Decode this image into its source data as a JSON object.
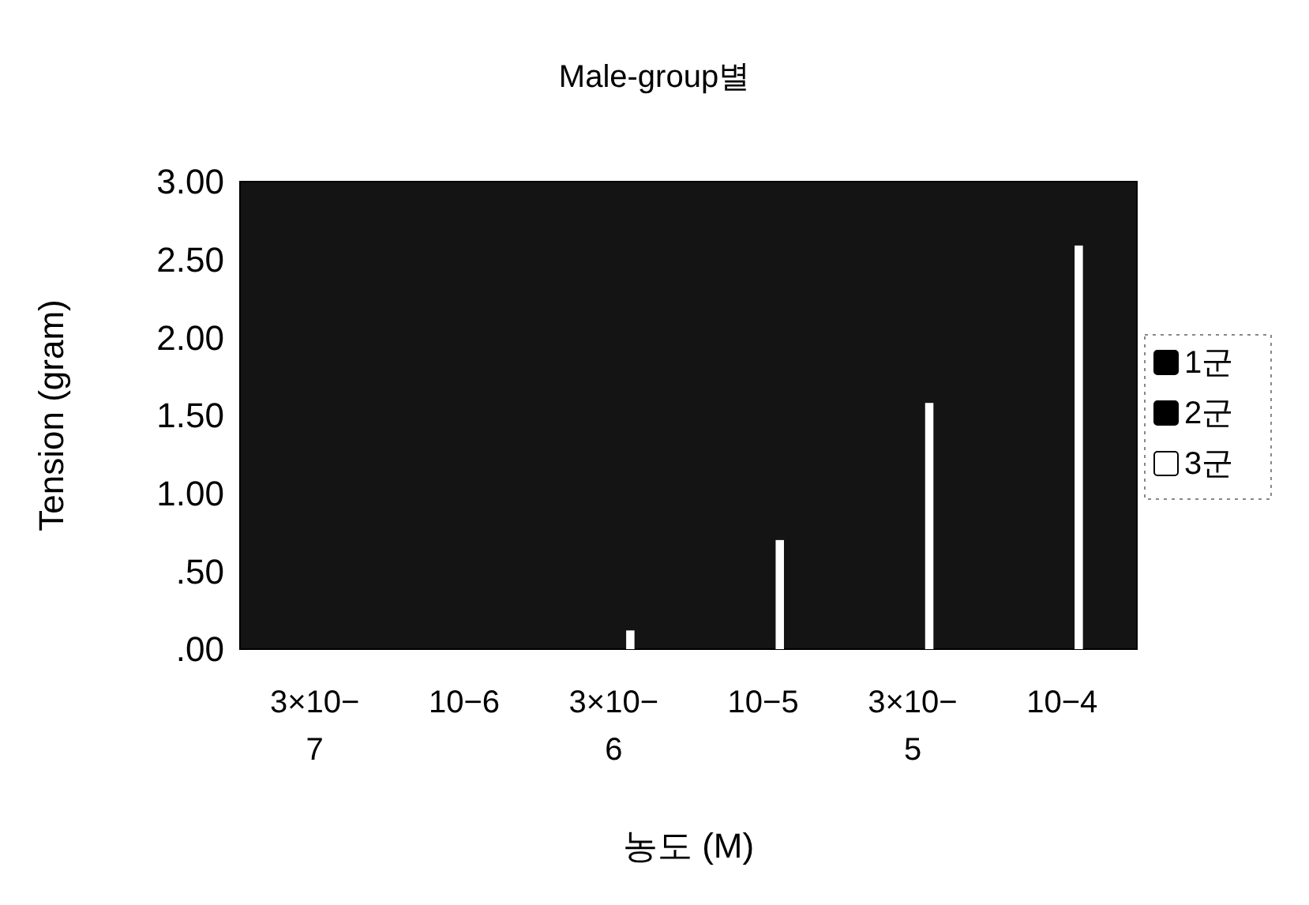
{
  "chart_data": {
    "type": "bar",
    "title": "Male-group별",
    "xlabel": "농도 (M)",
    "ylabel": "Tension (gram)",
    "categories": [
      "3×10−7",
      "10−6",
      "3×10−6",
      "10−5",
      "3×10−5",
      "10−4"
    ],
    "series": [
      {
        "name": "1군",
        "color": "#000000",
        "values": [
          null,
          null,
          null,
          null,
          null,
          null
        ]
      },
      {
        "name": "2군",
        "color": "#000000",
        "values": [
          null,
          null,
          null,
          null,
          null,
          null
        ]
      },
      {
        "name": "3군",
        "color": "#ffffff",
        "values": [
          0,
          0,
          0.12,
          0.7,
          1.58,
          2.59
        ]
      }
    ],
    "ylim": [
      0,
      3
    ],
    "yticks": [
      {
        "value": 0,
        "label": ".00"
      },
      {
        "value": 0.5,
        "label": ".50"
      },
      {
        "value": 1,
        "label": "1.00"
      },
      {
        "value": 1.5,
        "label": "1.50"
      },
      {
        "value": 2,
        "label": "2.00"
      },
      {
        "value": 2.5,
        "label": "2.50"
      },
      {
        "value": 3,
        "label": "3.00"
      }
    ],
    "grid": false,
    "legend": "right"
  }
}
